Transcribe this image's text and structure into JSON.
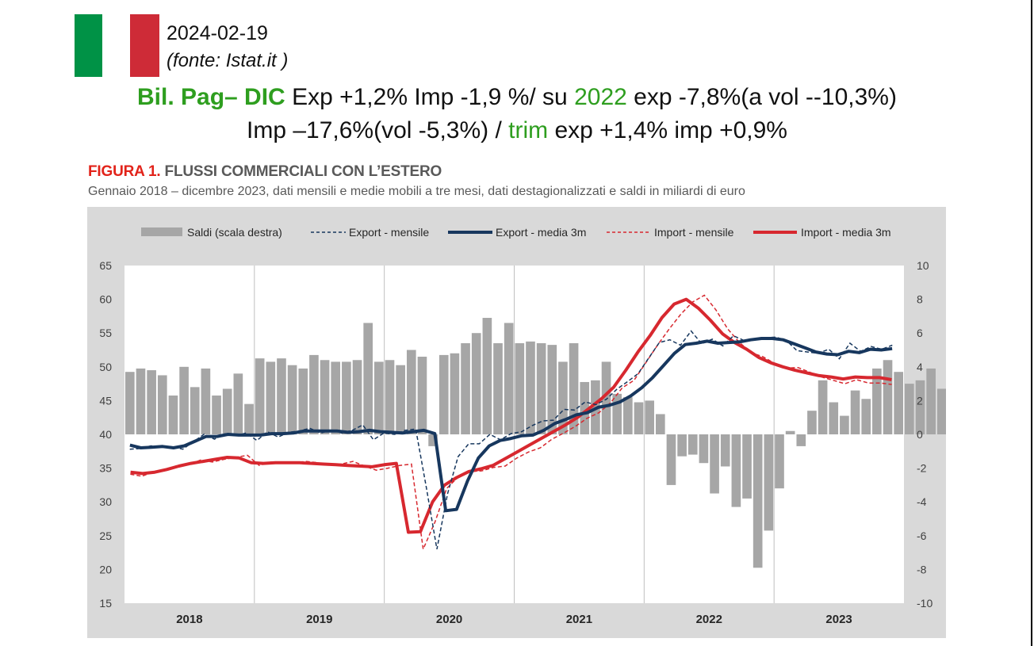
{
  "header": {
    "date": "2024-02-19",
    "source": "(fonte: Istat.it )",
    "flag_colors": [
      "#009246",
      "#ffffff",
      "#ce2b37"
    ],
    "line1": {
      "label": "Bil. Pag– DIC",
      "text1": " Exp +1,2% Imp -1,9 %/ su ",
      "year": "2022",
      "text2": " exp -7,8%(a vol --10,3%)"
    },
    "line2": {
      "text1": "Imp –17,6%(vol -5,3%) / ",
      "trim": "trim",
      "text2": " exp +1,4% imp +0,9%"
    }
  },
  "figure": {
    "prefix": "FIGURA 1.",
    "title": " FLUSSI COMMERCIALI CON L’ESTERO",
    "subtitle": "Gennaio 2018 – dicembre 2023, dati mensili e medie mobili a tre mesi, dati destagionalizzati e saldi in miliardi di euro"
  },
  "chart_data": {
    "type": "bar+line",
    "colors": {
      "saldi": "#a6a6a6",
      "export": "#17375e",
      "import": "#d7282f",
      "panel": "#d9d9d9",
      "plot": "#ffffff"
    },
    "legend": [
      "Saldi (scala destra)",
      "Export - mensile",
      "Export - media 3m",
      "Import - mensile",
      "Import - media 3m"
    ],
    "x_labels": [
      "2018",
      "2019",
      "2020",
      "2021",
      "2022",
      "2023"
    ],
    "y_left": {
      "min": 15,
      "max": 65,
      "ticks": [
        "15",
        "20",
        "25",
        "30",
        "35",
        "40",
        "45",
        "50",
        "55",
        "60",
        "65"
      ]
    },
    "y_right": {
      "min": -10,
      "max": 10,
      "ticks": [
        "-10",
        "-8",
        "-6",
        "-4",
        "-2",
        "0",
        "2",
        "4",
        "6",
        "8",
        "10"
      ]
    },
    "saldi": [
      3.7,
      3.9,
      3.8,
      3.5,
      2.3,
      4.0,
      2.8,
      3.9,
      2.3,
      2.7,
      3.6,
      1.8,
      4.5,
      4.3,
      4.5,
      4.1,
      3.9,
      4.7,
      4.4,
      4.3,
      4.3,
      4.4,
      6.6,
      4.3,
      4.4,
      4.1,
      5.0,
      4.6,
      -0.7,
      4.7,
      4.8,
      5.4,
      6.0,
      6.9,
      5.4,
      6.6,
      5.4,
      5.5,
      5.4,
      5.3,
      4.3,
      5.4,
      3.1,
      3.2,
      4.3,
      2.4,
      2.2,
      1.9,
      2.0,
      1.2,
      -3.0,
      -1.3,
      -1.2,
      -1.7,
      -3.5,
      -1.9,
      -4.3,
      -3.8,
      -7.9,
      -5.7,
      -3.2,
      0.2,
      -0.7,
      1.4,
      3.2,
      1.9,
      1.1,
      2.6,
      2.1,
      3.9,
      4.4,
      3.7,
      3.0,
      3.2,
      3.9,
      2.7,
      4.2,
      4.6
    ],
    "export_monthly": [
      37.8,
      37.9,
      38.3,
      38.1,
      38.2,
      37.8,
      38.9,
      40.0,
      39.3,
      40.1,
      39.8,
      40.2,
      39.1,
      40.4,
      39.6,
      40.3,
      40.5,
      40.9,
      40.2,
      40.6,
      40.2,
      40.6,
      41.4,
      39.2,
      40.2,
      40.0,
      40.6,
      40.8,
      32.1,
      23.0,
      31.2,
      36.7,
      38.6,
      38.6,
      40.0,
      39.2,
      40.1,
      40.4,
      41.3,
      42.0,
      42.1,
      43.7,
      43.6,
      44.8,
      44.4,
      45.2,
      46.7,
      47.8,
      49.0,
      51.3,
      53.6,
      54.0,
      53.2,
      55.3,
      53.4,
      54.1,
      53.1,
      54.6,
      53.9,
      54.1,
      54.3,
      54.4,
      53.9,
      52.4,
      52.2,
      52.0,
      52.6,
      51.2,
      53.5,
      52.3,
      53.0,
      52.6,
      53.2
    ],
    "export_avg3m": [
      38.4,
      38.0,
      38.1,
      38.2,
      38.0,
      38.3,
      39.0,
      39.7,
      39.7,
      40.0,
      39.9,
      39.9,
      39.9,
      40.1,
      40.1,
      40.2,
      40.5,
      40.5,
      40.5,
      40.5,
      40.3,
      40.4,
      40.6,
      40.4,
      40.3,
      40.2,
      40.4,
      40.6,
      40.1,
      28.7,
      28.9,
      33.1,
      36.5,
      38.3,
      39.1,
      39.4,
      39.8,
      39.9,
      40.6,
      41.6,
      42.2,
      42.9,
      43.2,
      44.0,
      44.3,
      44.8,
      45.7,
      46.9,
      48.4,
      50.2,
      52.0,
      53.3,
      53.5,
      53.8,
      53.5,
      53.6,
      53.7,
      54.0,
      54.2,
      54.2,
      54.0,
      53.4,
      52.8,
      52.2,
      51.9,
      51.8,
      52.3,
      52.1,
      52.6,
      52.5,
      52.7
    ],
    "import_monthly": [
      34.1,
      33.8,
      34.5,
      34.6,
      35.4,
      35.5,
      36.2,
      35.9,
      36.3,
      36.6,
      36.9,
      35.4,
      35.9,
      35.7,
      35.8,
      36.0,
      35.8,
      35.4,
      35.6,
      36.0,
      35.3,
      34.7,
      35.0,
      35.4,
      35.6,
      23.0,
      27.0,
      32.0,
      33.7,
      34.5,
      34.6,
      35.1,
      35.3,
      36.5,
      37.4,
      38.0,
      39.3,
      40.2,
      41.2,
      42.4,
      43.2,
      44.7,
      46.9,
      48.0,
      50.6,
      53.2,
      55.6,
      57.8,
      59.6,
      60.6,
      58.4,
      55.6,
      53.6,
      52.1,
      51.5,
      50.5,
      49.8,
      49.9,
      49.2,
      48.5,
      48.0,
      47.5,
      48.1,
      47.6,
      47.6,
      47.4
    ],
    "import_avg3m": [
      34.4,
      34.2,
      34.4,
      34.8,
      35.3,
      35.7,
      36.0,
      36.3,
      36.6,
      36.5,
      35.8,
      35.7,
      35.8,
      35.8,
      35.8,
      35.7,
      35.6,
      35.5,
      35.4,
      35.3,
      35.2,
      35.5,
      35.7,
      25.5,
      25.6,
      30.0,
      32.5,
      33.6,
      34.5,
      34.9,
      35.4,
      36.4,
      37.4,
      38.4,
      39.4,
      40.4,
      41.4,
      42.5,
      43.9,
      45.3,
      47.0,
      49.5,
      52.2,
      54.6,
      57.3,
      59.3,
      60.0,
      58.7,
      56.9,
      54.9,
      53.6,
      52.6,
      51.4,
      50.6,
      50.0,
      49.5,
      49.1,
      48.7,
      48.5,
      48.2,
      48.5,
      48.4,
      48.4,
      48.1
    ]
  }
}
